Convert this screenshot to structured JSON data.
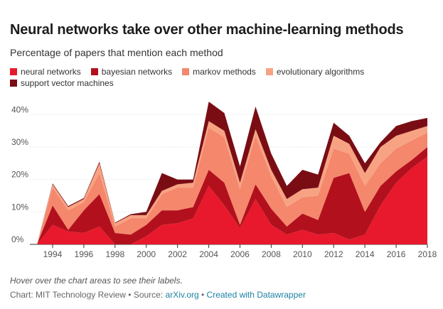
{
  "title": "Neural networks take over other machine-learning methods",
  "subtitle": "Percentage of papers that mention each method",
  "note": "Hover over the chart areas to see their labels.",
  "credit": {
    "prefix": "Chart: MIT Technology Review • Source: ",
    "source_link": "arXiv.org",
    "separator": " • ",
    "made_with_link": "Created with Datawrapper"
  },
  "colors": {
    "neural networks": "#e8192c",
    "bayesian networks": "#b3101d",
    "markov methods": "#f4876c",
    "evolutionary algorithms": "#f7a383",
    "support vector machines": "#7a0d14",
    "link": "#1d81a2"
  },
  "chart_data": {
    "type": "area",
    "stacked": true,
    "x": [
      1993,
      1994,
      1995,
      1996,
      1997,
      1998,
      1999,
      2000,
      2001,
      2002,
      2003,
      2004,
      2005,
      2006,
      2007,
      2008,
      2009,
      2010,
      2011,
      2012,
      2013,
      2014,
      2015,
      2016,
      2017,
      2018
    ],
    "series": [
      {
        "name": "neural networks",
        "values": [
          0,
          6,
          4,
          3.5,
          5.5,
          0,
          0,
          2.5,
          6,
          6.5,
          8,
          18,
          12,
          5,
          14,
          6,
          3,
          4.5,
          3,
          3.5,
          1.5,
          3,
          12,
          19,
          23.5,
          27
        ]
      },
      {
        "name": "bayesian networks",
        "values": [
          0,
          6,
          0.5,
          7,
          10,
          3.5,
          3,
          3.5,
          4.5,
          4,
          3.5,
          5,
          7,
          1,
          4.5,
          5,
          2.5,
          5,
          4.5,
          17,
          20.5,
          7,
          6,
          3.5,
          2.5,
          3
        ]
      },
      {
        "name": "markov methods",
        "values": [
          0,
          5.5,
          6,
          2.5,
          6.5,
          2,
          5,
          2,
          5,
          7,
          6,
          13,
          14,
          11,
          15,
          10,
          6,
          5,
          7.5,
          9,
          6,
          8,
          7,
          7,
          6,
          4.5
        ]
      },
      {
        "name": "evolutionary algorithms",
        "values": [
          0,
          1,
          1,
          1,
          3,
          1,
          1,
          1,
          1,
          1,
          1.5,
          2,
          2,
          2,
          2,
          2,
          2.5,
          2.5,
          2.5,
          4,
          3,
          4,
          5,
          4,
          3,
          2
        ]
      },
      {
        "name": "support vector machines",
        "values": [
          0,
          0.3,
          0.3,
          0.3,
          0.5,
          0.2,
          0.3,
          1,
          5.5,
          1.5,
          1,
          6,
          5.5,
          5,
          7,
          5,
          4,
          6,
          4,
          4,
          2.5,
          3,
          1.5,
          3,
          3,
          2.5
        ]
      }
    ],
    "y_ticks": [
      "0%",
      "10%",
      "20%",
      "30%",
      "40%"
    ],
    "x_ticks": [
      "1994",
      "1996",
      "1998",
      "2000",
      "2002",
      "2004",
      "2006",
      "2008",
      "2010",
      "2012",
      "2014",
      "2016",
      "2018"
    ],
    "ylim": [
      0,
      46
    ],
    "xlim": [
      1993,
      2018
    ],
    "grid": true,
    "legend_position": "top-left"
  }
}
